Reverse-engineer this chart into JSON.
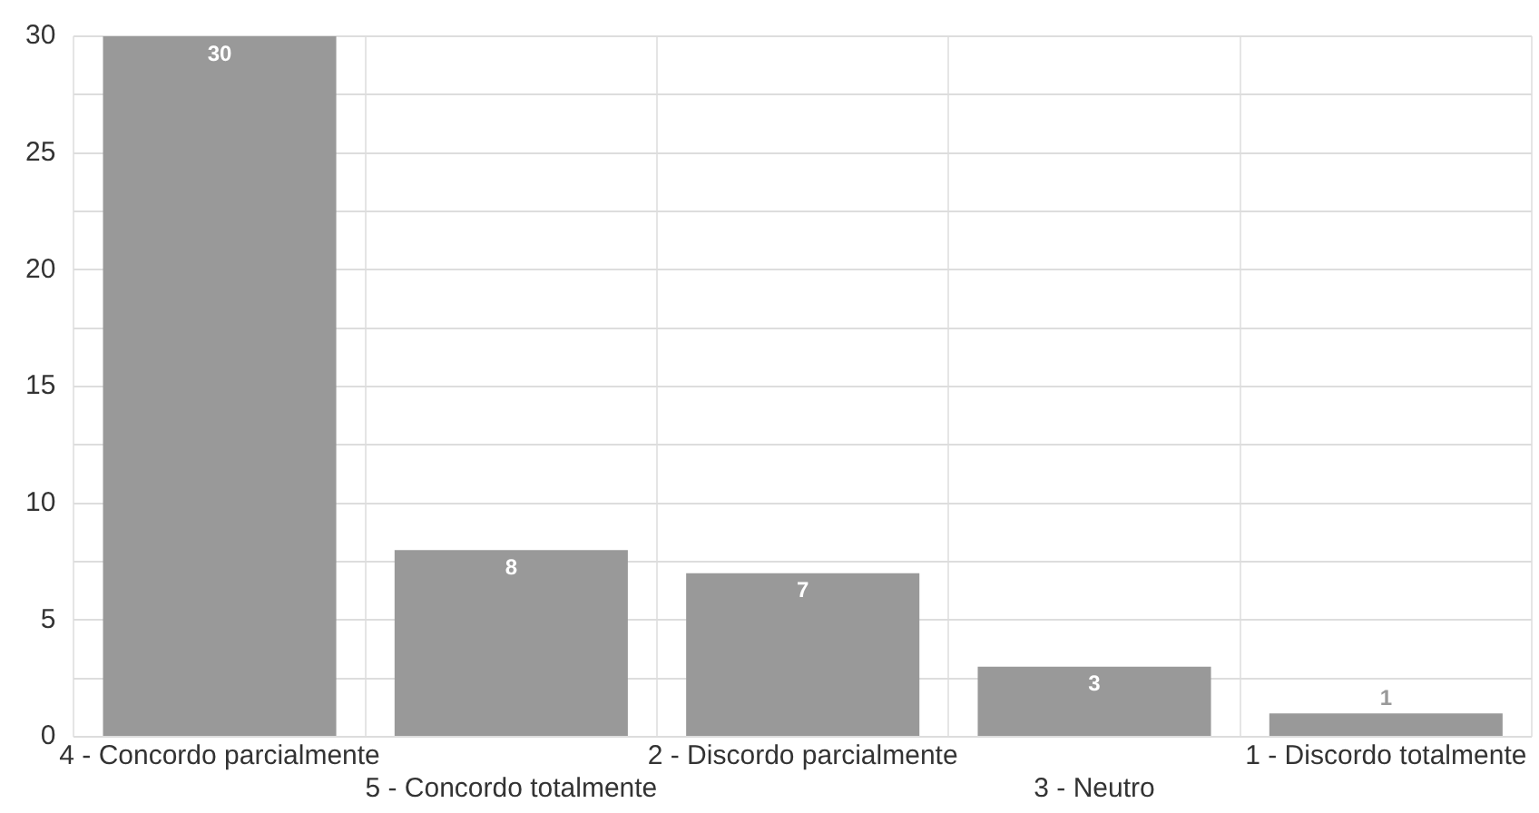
{
  "chart_data": {
    "type": "bar",
    "categories": [
      "4 - Concordo parcialmente",
      "5 - Concordo totalmente",
      "2 - Discordo parcialmente",
      "3 - Neutro",
      "1 - Discordo totalmente"
    ],
    "values": [
      30,
      8,
      7,
      3,
      1
    ],
    "color": "#999999",
    "ylim": [
      0,
      30
    ],
    "yticks": [
      0,
      {
        "value": 2.5,
        "label": null
      },
      5,
      {
        "value": 7.5,
        "label": null
      },
      10,
      {
        "value": 12.5,
        "label": null
      },
      15,
      {
        "value": 17.5,
        "label": null
      },
      20,
      {
        "value": 22.5,
        "label": null
      },
      25,
      {
        "value": 27.5,
        "label": null
      },
      30
    ],
    "grid": true,
    "data_labels": true
  }
}
